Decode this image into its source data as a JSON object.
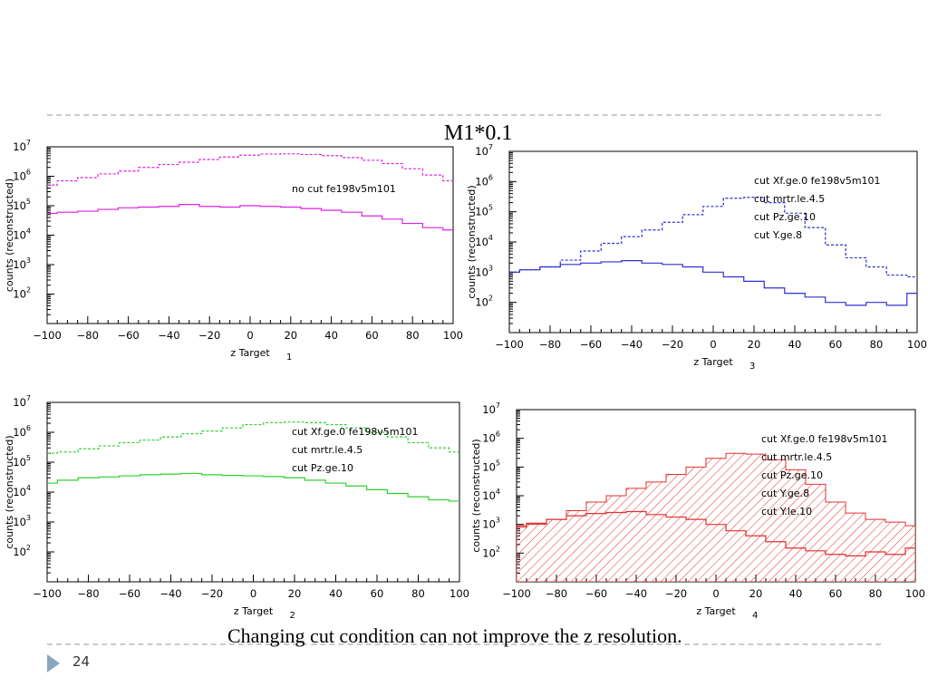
{
  "slide": {
    "title": "M1*0.1",
    "caption": "Changing cut condition can not improve the z resolution.",
    "page_number": "24"
  },
  "colors": {
    "rule": "#c5ccd3",
    "accent": "#8aa6bd"
  },
  "chart_data": [
    {
      "type": "line",
      "panel_number": "1",
      "xlabel": "z Target",
      "ylabel": "counts (reconstructed)",
      "xlim": [
        -100,
        100
      ],
      "ylim_log10": [
        1,
        7
      ],
      "x_ticks": [
        "−100",
        "−80",
        "−60",
        "−40",
        "−20",
        "0",
        "20",
        "40",
        "60",
        "80",
        "100"
      ],
      "y_ticks": [
        {
          "base": "10",
          "exp": "2",
          "v": 2
        },
        {
          "base": "10",
          "exp": "3",
          "v": 3
        },
        {
          "base": "10",
          "exp": "4",
          "v": 4
        },
        {
          "base": "10",
          "exp": "5",
          "v": 5
        },
        {
          "base": "10",
          "exp": "6",
          "v": 6
        },
        {
          "base": "10",
          "exp": "7",
          "v": 7
        }
      ],
      "annotations": [
        "no cut fe198v5m101"
      ],
      "color": "#e020e0",
      "x": [
        -100,
        -90,
        -80,
        -70,
        -60,
        -50,
        -40,
        -30,
        -20,
        -10,
        0,
        10,
        20,
        30,
        40,
        50,
        60,
        70,
        80,
        90,
        100
      ],
      "series": [
        {
          "style": "dashed",
          "values": [
            500000,
            700000,
            900000,
            1200000,
            1500000,
            2000000,
            2500000,
            3000000,
            3700000,
            4500000,
            5200000,
            5700000,
            5800000,
            5500000,
            5000000,
            4300000,
            3500000,
            2700000,
            1800000,
            1100000,
            700000
          ]
        },
        {
          "style": "solid",
          "values": [
            55000,
            60000,
            65000,
            75000,
            85000,
            90000,
            95000,
            110000,
            95000,
            90000,
            100000,
            95000,
            90000,
            80000,
            70000,
            60000,
            45000,
            35000,
            25000,
            18000,
            15000
          ]
        }
      ]
    },
    {
      "type": "line",
      "panel_number": "2",
      "xlabel": "z Target",
      "ylabel": "counts (reconstructed)",
      "xlim": [
        -100,
        100
      ],
      "ylim_log10": [
        1,
        7
      ],
      "x_ticks": [
        "−100",
        "−80",
        "−60",
        "−40",
        "−20",
        "0",
        "20",
        "40",
        "60",
        "80",
        "100"
      ],
      "y_ticks": [
        {
          "base": "10",
          "exp": "2",
          "v": 2
        },
        {
          "base": "10",
          "exp": "3",
          "v": 3
        },
        {
          "base": "10",
          "exp": "4",
          "v": 4
        },
        {
          "base": "10",
          "exp": "5",
          "v": 5
        },
        {
          "base": "10",
          "exp": "6",
          "v": 6
        },
        {
          "base": "10",
          "exp": "7",
          "v": 7
        }
      ],
      "annotations": [
        "cut Xf.ge.0 fe198v5m101",
        "cut mrtr.le.4.5",
        "cut Pz.ge.10"
      ],
      "color": "#30d030",
      "x": [
        -100,
        -90,
        -80,
        -70,
        -60,
        -50,
        -40,
        -30,
        -20,
        -10,
        0,
        10,
        20,
        30,
        40,
        50,
        60,
        70,
        80,
        90,
        100
      ],
      "series": [
        {
          "style": "dashed",
          "values": [
            200000,
            220000,
            280000,
            350000,
            450000,
            550000,
            700000,
            900000,
            1100000,
            1400000,
            1800000,
            2100000,
            2200000,
            2100000,
            1800000,
            1400000,
            1000000,
            700000,
            450000,
            300000,
            220000
          ]
        },
        {
          "style": "solid",
          "values": [
            20000,
            25000,
            30000,
            32000,
            35000,
            38000,
            40000,
            42000,
            38000,
            36000,
            35000,
            33000,
            30000,
            25000,
            20000,
            16000,
            12000,
            9000,
            7000,
            5500,
            5000
          ]
        }
      ]
    },
    {
      "type": "line",
      "panel_number": "3",
      "xlabel": "z Target",
      "ylabel": "counts (reconstructed)",
      "xlim": [
        -100,
        100
      ],
      "ylim_log10": [
        1,
        7
      ],
      "x_ticks": [
        "−100",
        "−80",
        "−60",
        "−40",
        "−20",
        "0",
        "20",
        "40",
        "60",
        "80",
        "100"
      ],
      "y_ticks": [
        {
          "base": "10",
          "exp": "2",
          "v": 2
        },
        {
          "base": "10",
          "exp": "3",
          "v": 3
        },
        {
          "base": "10",
          "exp": "4",
          "v": 4
        },
        {
          "base": "10",
          "exp": "5",
          "v": 5
        },
        {
          "base": "10",
          "exp": "6",
          "v": 6
        },
        {
          "base": "10",
          "exp": "7",
          "v": 7
        }
      ],
      "annotations": [
        "cut Xf.ge.0 fe198v5m101",
        "cut mrtr.le.4.5",
        "cut Pz.ge.10",
        "cut Y.ge.8"
      ],
      "color": "#3030d0",
      "x": [
        -100,
        -90,
        -80,
        -70,
        -60,
        -50,
        -40,
        -30,
        -20,
        -10,
        0,
        10,
        20,
        30,
        40,
        50,
        60,
        70,
        80,
        90,
        100
      ],
      "series": [
        {
          "style": "dashed",
          "values": [
            1000,
            1200,
            1500,
            2500,
            5000,
            9000,
            15000,
            25000,
            45000,
            80000,
            150000,
            280000,
            300000,
            200000,
            90000,
            30000,
            8000,
            3000,
            1500,
            800,
            700
          ]
        },
        {
          "style": "solid",
          "values": [
            1000,
            1200,
            1500,
            1800,
            2000,
            2200,
            2400,
            2000,
            1800,
            1500,
            1000,
            700,
            500,
            300,
            200,
            150,
            100,
            80,
            100,
            80,
            200
          ]
        }
      ]
    },
    {
      "type": "area",
      "panel_number": "4",
      "xlabel": "z Target",
      "ylabel": "counts (reconstructed)",
      "xlim": [
        -100,
        100
      ],
      "ylim_log10": [
        1,
        7
      ],
      "x_ticks": [
        "−100",
        "−80",
        "−60",
        "−40",
        "−20",
        "0",
        "20",
        "40",
        "60",
        "80",
        "100"
      ],
      "y_ticks": [
        {
          "base": "10",
          "exp": "2",
          "v": 2
        },
        {
          "base": "10",
          "exp": "3",
          "v": 3
        },
        {
          "base": "10",
          "exp": "4",
          "v": 4
        },
        {
          "base": "10",
          "exp": "5",
          "v": 5
        },
        {
          "base": "10",
          "exp": "6",
          "v": 6
        },
        {
          "base": "10",
          "exp": "7",
          "v": 7
        }
      ],
      "annotations": [
        "cut Xf.ge.0 fe198v5m101",
        "cut mrtr.le.4.5",
        "cut Pz.ge.10",
        "cut Y.ge.8",
        "cut Y.le.10"
      ],
      "color": "#e03030",
      "x": [
        -100,
        -90,
        -80,
        -70,
        -60,
        -50,
        -40,
        -30,
        -20,
        -10,
        0,
        10,
        20,
        30,
        40,
        50,
        60,
        70,
        80,
        90,
        100
      ],
      "series": [
        {
          "style": "hatched",
          "values": [
            800,
            1000,
            1500,
            3000,
            6000,
            10000,
            18000,
            30000,
            55000,
            100000,
            200000,
            300000,
            280000,
            180000,
            80000,
            25000,
            6000,
            2500,
            1500,
            1200,
            900
          ]
        },
        {
          "style": "solid",
          "values": [
            900,
            1100,
            1500,
            2000,
            2400,
            2600,
            2800,
            2200,
            1800,
            1500,
            1000,
            600,
            400,
            250,
            150,
            120,
            90,
            80,
            110,
            90,
            150
          ]
        }
      ]
    }
  ]
}
